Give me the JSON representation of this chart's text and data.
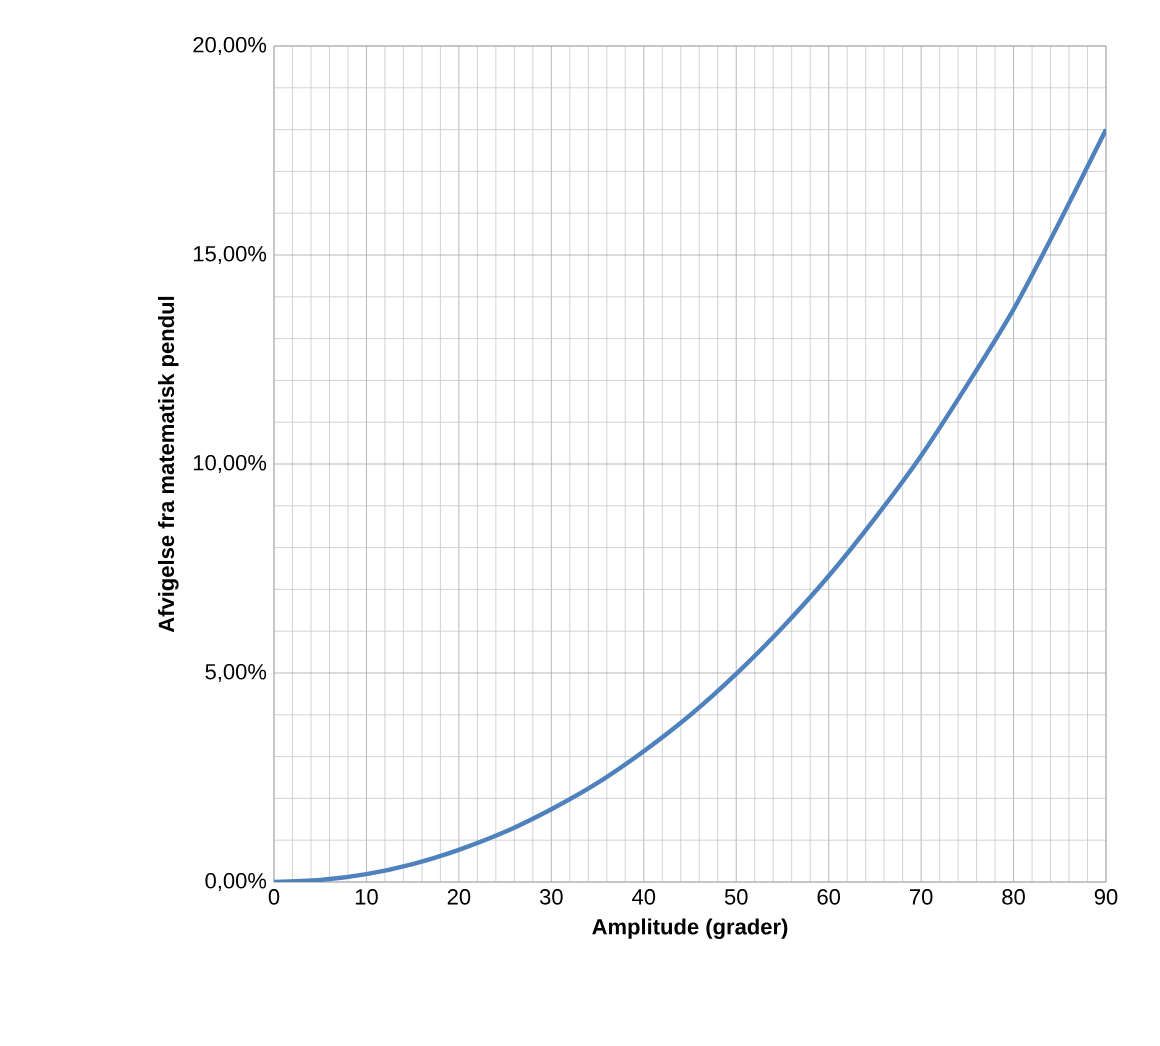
{
  "chart_data": {
    "type": "line",
    "xlabel": "Amplitude (grader)",
    "ylabel": "Afvigelse fra matematisk pendul",
    "x": [
      0,
      5,
      10,
      15,
      20,
      25,
      30,
      35,
      40,
      45,
      50,
      55,
      60,
      65,
      70,
      75,
      80,
      85,
      90
    ],
    "series": [
      {
        "color": "#4f81bd",
        "values": [
          0,
          0.05,
          0.19,
          0.43,
          0.77,
          1.2,
          1.74,
          2.37,
          3.13,
          3.99,
          4.98,
          6.09,
          7.32,
          8.7,
          10.2,
          11.9,
          13.7,
          15.8,
          18.0
        ]
      }
    ],
    "xlim": [
      0,
      90
    ],
    "xticks": [
      0,
      10,
      20,
      30,
      40,
      50,
      60,
      70,
      80,
      90
    ],
    "ylim": [
      0,
      20
    ],
    "yticks": [
      {
        "value": 0,
        "label": "0,00%"
      },
      {
        "value": 5,
        "label": "5,00%"
      },
      {
        "value": 10,
        "label": "10,00%"
      },
      {
        "value": 15,
        "label": "15,00%"
      },
      {
        "value": 20,
        "label": "20,00%"
      }
    ],
    "grid": true,
    "marker": "none",
    "line_style": "solid",
    "legend": false
  }
}
